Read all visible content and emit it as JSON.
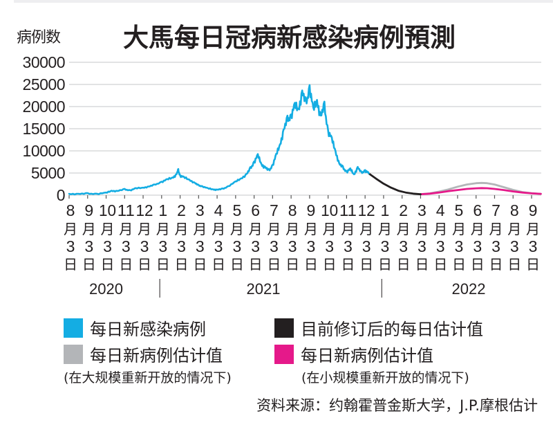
{
  "chart_data": {
    "type": "line",
    "title": "大馬每日冠病新感染病例預測",
    "ylabel": "病例数",
    "xlabel": "",
    "ylim": [
      0,
      30000
    ],
    "yticks": [
      0,
      5000,
      10000,
      15000,
      20000,
      25000,
      30000
    ],
    "ytick_labels": [
      "0",
      "5000",
      "10000",
      "15000",
      "20000",
      "25000",
      "30000"
    ],
    "grid": true,
    "x_unit": "months since 2020-08-03",
    "xticks": [
      {
        "month": "8",
        "day": "3",
        "suffix_m": "月",
        "suffix_d": "日"
      },
      {
        "month": "9",
        "day": "3",
        "suffix_m": "月",
        "suffix_d": "日"
      },
      {
        "month": "10",
        "day": "3",
        "suffix_m": "月",
        "suffix_d": "日"
      },
      {
        "month": "11",
        "day": "3",
        "suffix_m": "月",
        "suffix_d": "日"
      },
      {
        "month": "12",
        "day": "3",
        "suffix_m": "月",
        "suffix_d": "日"
      },
      {
        "month": "1",
        "day": "3",
        "suffix_m": "月",
        "suffix_d": "日"
      },
      {
        "month": "2",
        "day": "3",
        "suffix_m": "月",
        "suffix_d": "日"
      },
      {
        "month": "3",
        "day": "3",
        "suffix_m": "月",
        "suffix_d": "日"
      },
      {
        "month": "4",
        "day": "3",
        "suffix_m": "月",
        "suffix_d": "日"
      },
      {
        "month": "5",
        "day": "3",
        "suffix_m": "月",
        "suffix_d": "日"
      },
      {
        "month": "6",
        "day": "3",
        "suffix_m": "月",
        "suffix_d": "日"
      },
      {
        "month": "7",
        "day": "3",
        "suffix_m": "月",
        "suffix_d": "日"
      },
      {
        "month": "8",
        "day": "3",
        "suffix_m": "月",
        "suffix_d": "日"
      },
      {
        "month": "9",
        "day": "3",
        "suffix_m": "月",
        "suffix_d": "日"
      },
      {
        "month": "10",
        "day": "3",
        "suffix_m": "月",
        "suffix_d": "日"
      },
      {
        "month": "11",
        "day": "3",
        "suffix_m": "月",
        "suffix_d": "日"
      },
      {
        "month": "12",
        "day": "3",
        "suffix_m": "月",
        "suffix_d": "日"
      },
      {
        "month": "1",
        "day": "3",
        "suffix_m": "月",
        "suffix_d": "日"
      },
      {
        "month": "2",
        "day": "3",
        "suffix_m": "月",
        "suffix_d": "日"
      },
      {
        "month": "3",
        "day": "3",
        "suffix_m": "月",
        "suffix_d": "日"
      },
      {
        "month": "4",
        "day": "3",
        "suffix_m": "月",
        "suffix_d": "日"
      },
      {
        "month": "5",
        "day": "3",
        "suffix_m": "月",
        "suffix_d": "日"
      },
      {
        "month": "6",
        "day": "3",
        "suffix_m": "月",
        "suffix_d": "日"
      },
      {
        "month": "7",
        "day": "3",
        "suffix_m": "月",
        "suffix_d": "日"
      },
      {
        "month": "8",
        "day": "3",
        "suffix_m": "月",
        "suffix_d": "日"
      },
      {
        "month": "9",
        "day": "3",
        "suffix_m": "月",
        "suffix_d": "日"
      }
    ],
    "xlim": [
      0,
      25.5
    ],
    "years": [
      {
        "label": "2020",
        "center": 2.0
      },
      {
        "label": "2021",
        "center": 10.5
      },
      {
        "label": "2022",
        "center": 21.6
      }
    ],
    "year_dividers": [
      4.9,
      16.9
    ],
    "series": [
      {
        "name": "每日新感染病例",
        "color": "#14ade3",
        "x": [
          0,
          0.5,
          1,
          1.5,
          2,
          2.3,
          2.6,
          3,
          3.3,
          3.6,
          4,
          4.3,
          4.6,
          5,
          5.3,
          5.6,
          5.8,
          5.9,
          6,
          6.2,
          6.5,
          6.8,
          7,
          7.2,
          7.5,
          7.8,
          8,
          8.3,
          8.6,
          9,
          9.3,
          9.6,
          9.8,
          10,
          10.2,
          10.4,
          10.6,
          10.8,
          11,
          11.2,
          11.4,
          11.6,
          11.8,
          12,
          12.2,
          12.4,
          12.6,
          12.8,
          13,
          13.2,
          13.4,
          13.6,
          13.8,
          14,
          14.2,
          14.4,
          14.6,
          14.8,
          15,
          15.2,
          15.4,
          15.6,
          15.8,
          16,
          16.2
        ],
        "y": [
          300,
          250,
          350,
          300,
          500,
          1000,
          900,
          1300,
          1100,
          1500,
          1700,
          1900,
          2300,
          3000,
          3500,
          4000,
          4600,
          5600,
          4400,
          4000,
          3500,
          2700,
          2200,
          2000,
          1500,
          1300,
          1200,
          1400,
          2000,
          3000,
          3800,
          4700,
          6000,
          7500,
          8900,
          7000,
          6200,
          5500,
          6800,
          9000,
          11500,
          14500,
          17000,
          18000,
          20000,
          19500,
          23000,
          20500,
          24500,
          19000,
          21500,
          17500,
          20000,
          14500,
          12500,
          10000,
          7000,
          6200,
          5300,
          5800,
          4700,
          6200,
          5000,
          5600,
          4900
        ]
      },
      {
        "name": "目前修订后的每日估计值",
        "color": "#231f20",
        "x": [
          16.2,
          16.6,
          17,
          17.4,
          17.8,
          18.2,
          18.6,
          19
        ],
        "y": [
          4900,
          3700,
          2600,
          1700,
          1000,
          600,
          350,
          200
        ]
      },
      {
        "name": "每日新病例估计值 (在大规模重新开放的情况下)",
        "color": "#b3b5b8",
        "x": [
          19,
          19.5,
          20,
          20.5,
          21,
          21.5,
          22,
          22.3,
          22.6,
          23,
          23.5,
          24,
          24.5,
          25,
          25.5
        ],
        "y": [
          200,
          400,
          800,
          1300,
          1900,
          2400,
          2700,
          2770,
          2700,
          2400,
          1800,
          1200,
          700,
          450,
          300
        ]
      },
      {
        "name": "每日新病例估计值 (在小规模重新开放的情况下)",
        "color": "#e5198a",
        "x": [
          19,
          19.5,
          20,
          20.5,
          21,
          21.5,
          22,
          22.3,
          22.6,
          23,
          23.5,
          24,
          24.5,
          25,
          25.5
        ],
        "y": [
          200,
          350,
          600,
          900,
          1150,
          1400,
          1550,
          1600,
          1560,
          1400,
          1150,
          850,
          600,
          400,
          300
        ]
      }
    ],
    "legend": [
      {
        "label": "每日新感染病例",
        "color": "#14ade3"
      },
      {
        "label": "目前修订后的每日估计值",
        "color": "#231f20"
      },
      {
        "label": "每日新病例估计值",
        "note": "(在大规模重新开放的情况下)",
        "color": "#b3b5b8"
      },
      {
        "label": "每日新病例估计值",
        "note": "(在小规模重新开放的情况下)",
        "color": "#e5198a"
      }
    ],
    "legend_placement": "bottom",
    "source": "资料来源：约翰霍普金斯大学，J.P.摩根估计"
  }
}
